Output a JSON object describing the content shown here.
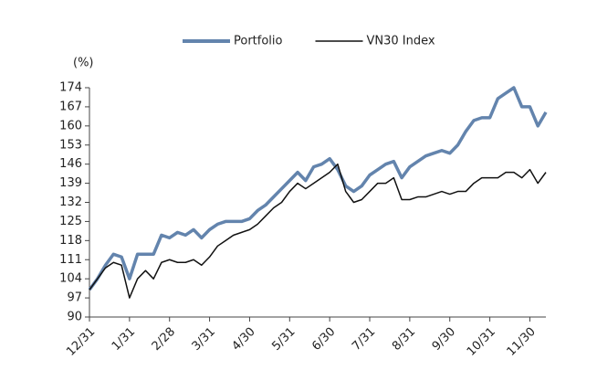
{
  "chart_data": {
    "type": "line",
    "y_label": "(%)",
    "categories": [
      "12/31",
      null,
      null,
      null,
      null,
      "1/31",
      null,
      null,
      null,
      null,
      "2/28",
      null,
      null,
      null,
      null,
      "3/31",
      null,
      null,
      null,
      null,
      "4/30",
      null,
      null,
      null,
      null,
      "5/31",
      null,
      null,
      null,
      null,
      "6/30",
      null,
      null,
      null,
      null,
      "7/31",
      null,
      null,
      null,
      null,
      "8/31",
      null,
      null,
      null,
      null,
      "9/30",
      null,
      null,
      null,
      null,
      "10/31",
      null,
      null,
      null,
      null,
      "11/30",
      null,
      null
    ],
    "series": [
      {
        "name": "Portfolio",
        "color": "#6384ad",
        "values": [
          100,
          104,
          109,
          113,
          112,
          104,
          113,
          113,
          113,
          120,
          119,
          121,
          120,
          122,
          119,
          122,
          124,
          125,
          125,
          125,
          126,
          129,
          131,
          134,
          137,
          140,
          143,
          140,
          145,
          146,
          148,
          144,
          138,
          136,
          138,
          142,
          144,
          146,
          147,
          141,
          145,
          147,
          149,
          150,
          151,
          150,
          153,
          158,
          162,
          163,
          163,
          170,
          172,
          174,
          167,
          167,
          160,
          165
        ]
      },
      {
        "name": "VN30 Index",
        "color": "#111111",
        "values": [
          100,
          104,
          108,
          110,
          109,
          97,
          104,
          107,
          104,
          110,
          111,
          110,
          110,
          111,
          109,
          112,
          116,
          118,
          120,
          121,
          122,
          124,
          127,
          130,
          132,
          136,
          139,
          137,
          139,
          141,
          143,
          146,
          136,
          132,
          133,
          136,
          139,
          139,
          141,
          133,
          133,
          134,
          134,
          135,
          136,
          135,
          136,
          136,
          139,
          141,
          141,
          141,
          143,
          143,
          141,
          144,
          139,
          143
        ]
      }
    ],
    "ylim": [
      90,
      174
    ],
    "yticks": [
      90,
      97,
      104,
      111,
      118,
      125,
      132,
      139,
      146,
      153,
      160,
      167,
      174
    ],
    "legend": "top"
  }
}
